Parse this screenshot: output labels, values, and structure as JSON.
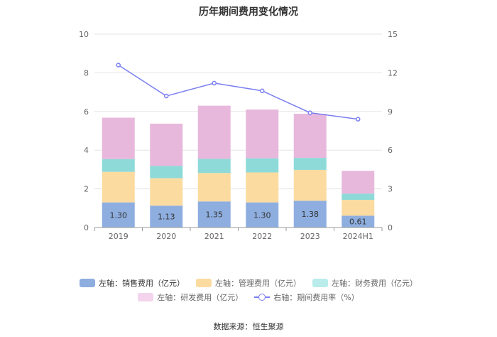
{
  "chart_data": {
    "type": "bar",
    "title": "历年期间费用变化情况",
    "categories": [
      "2019",
      "2020",
      "2021",
      "2022",
      "2023",
      "2024H1"
    ],
    "left_axis": {
      "ylim": [
        0,
        10
      ],
      "ticks": [
        "0",
        "2",
        "4",
        "6",
        "8",
        "10"
      ]
    },
    "right_axis": {
      "ylim": [
        0,
        15
      ],
      "ticks": [
        "0",
        "3",
        "6",
        "9",
        "12",
        "15"
      ]
    },
    "series": [
      {
        "name": "左轴：销售费用（亿元）",
        "type": "bar",
        "axis": "left",
        "color": "#8eaee0",
        "values": [
          1.3,
          1.13,
          1.35,
          1.3,
          1.38,
          0.61
        ],
        "labels": [
          "1.30",
          "1.13",
          "1.35",
          "1.30",
          "1.38",
          "0.61"
        ]
      },
      {
        "name": "左轴：管理费用（亿元）",
        "type": "bar",
        "axis": "left",
        "color": "#fcdba0",
        "values": [
          1.58,
          1.42,
          1.47,
          1.55,
          1.6,
          0.82
        ]
      },
      {
        "name": "左轴：财务费用（亿元）",
        "type": "bar",
        "axis": "left",
        "color": "#8ddad9",
        "values": [
          0.66,
          0.63,
          0.73,
          0.73,
          0.62,
          0.32
        ]
      },
      {
        "name": "左轴：研发费用（亿元）",
        "type": "bar",
        "axis": "left",
        "color": "#e8b8dc",
        "values": [
          2.14,
          2.19,
          2.75,
          2.52,
          2.28,
          1.18
        ]
      },
      {
        "name": "右轴：期间费用率（%）",
        "type": "line",
        "axis": "right",
        "color": "#7b7ff0",
        "values": [
          12.6,
          10.2,
          11.2,
          10.6,
          8.9,
          8.4
        ]
      }
    ],
    "source": "数据来源：恒生聚源"
  }
}
